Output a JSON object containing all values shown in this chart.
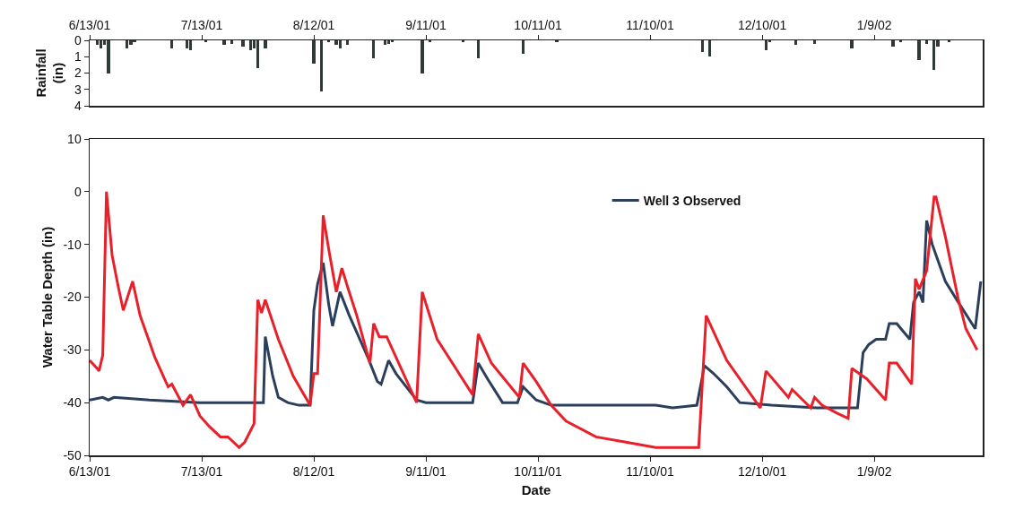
{
  "chart_data": [
    {
      "type": "bar",
      "ylabel": "Rainfall (in)",
      "color": "#2f3a35",
      "x": [
        "2001-06-15",
        "2001-06-16",
        "2001-06-17",
        "2001-06-18",
        "2001-06-23",
        "2001-06-24",
        "2001-06-25",
        "2001-07-05",
        "2001-07-09",
        "2001-07-10",
        "2001-07-14",
        "2001-07-19",
        "2001-07-21",
        "2001-07-24",
        "2001-07-26",
        "2001-07-27",
        "2001-07-28",
        "2001-07-30",
        "2001-08-12",
        "2001-08-14",
        "2001-08-16",
        "2001-08-18",
        "2001-08-19",
        "2001-08-21",
        "2001-08-28",
        "2001-08-31",
        "2001-09-01",
        "2001-09-02",
        "2001-09-10",
        "2001-09-12",
        "2001-09-21",
        "2001-09-25",
        "2001-10-07",
        "2001-10-16",
        "2001-11-24",
        "2001-11-26",
        "2001-12-11",
        "2001-12-12",
        "2001-12-19",
        "2001-12-24",
        "2002-01-03",
        "2002-01-14",
        "2002-01-16",
        "2002-01-21",
        "2002-01-23",
        "2002-01-25",
        "2002-01-26",
        "2002-01-29"
      ],
      "values": [
        0.3,
        0.5,
        0.3,
        2.0,
        0.5,
        0.3,
        0.1,
        0.5,
        0.5,
        0.6,
        0.1,
        0.3,
        0.2,
        0.4,
        0.6,
        0.5,
        1.7,
        0.5,
        1.4,
        3.1,
        0.1,
        0.3,
        0.5,
        0.3,
        1.1,
        0.3,
        0.2,
        0.1,
        2.0,
        0.1,
        0.1,
        1.1,
        0.8,
        0.1,
        0.7,
        1.0,
        0.6,
        0.1,
        0.3,
        0.2,
        0.5,
        0.4,
        0.1,
        1.2,
        0.2,
        1.8,
        0.4,
        0.1
      ],
      "xlim": [
        "2001-06-13",
        "2002-02-07"
      ],
      "xticks": [
        {
          "value": "2001-06-13",
          "label": "6/13/01"
        },
        {
          "value": "2001-07-13",
          "label": "7/13/01"
        },
        {
          "value": "2001-08-12",
          "label": "8/12/01"
        },
        {
          "value": "2001-09-11",
          "label": "9/11/01"
        },
        {
          "value": "2001-10-11",
          "label": "10/11/01"
        },
        {
          "value": "2001-11-10",
          "label": "11/10/01"
        },
        {
          "value": "2001-12-10",
          "label": "12/10/01"
        },
        {
          "value": "2002-01-09",
          "label": "1/9/02"
        }
      ],
      "ylim": [
        4,
        0
      ],
      "yticks": [
        0,
        1,
        2,
        3,
        4
      ],
      "grid": false,
      "legend": false
    },
    {
      "type": "line",
      "xlabel": "Date",
      "ylabel": "Water Table Depth (in)",
      "legend": "top right",
      "grid": false,
      "marker": "none",
      "line_style": "solid",
      "xlim": [
        "2001-06-13",
        "2002-02-07"
      ],
      "xticks": [
        {
          "value": "2001-06-13",
          "label": "6/13/01"
        },
        {
          "value": "2001-07-13",
          "label": "7/13/01"
        },
        {
          "value": "2001-08-12",
          "label": "8/12/01"
        },
        {
          "value": "2001-09-11",
          "label": "9/11/01"
        },
        {
          "value": "2001-10-11",
          "label": "10/11/01"
        },
        {
          "value": "2001-11-10",
          "label": "11/10/01"
        },
        {
          "value": "2001-12-10",
          "label": "12/10/01"
        },
        {
          "value": "2002-01-09",
          "label": "1/9/02"
        }
      ],
      "ylim": [
        -50,
        10
      ],
      "yticks": [
        -50,
        -40,
        -30,
        -20,
        -10,
        0,
        10
      ],
      "series": [
        {
          "name": "Well 3 Observed",
          "color": "#2b3f5c",
          "x": [
            "2001-06-13",
            "2001-06-16T12:00",
            "2001-06-18",
            "2001-06-19T12:00",
            "2001-06-29",
            "2001-07-12T12:00",
            "2001-07-28T12:00",
            "2001-07-29T12:00",
            "2001-07-30",
            "2001-08-01",
            "2001-08-02T12:00",
            "2001-08-05",
            "2001-08-08",
            "2001-08-11",
            "2001-08-12",
            "2001-08-13",
            "2001-08-14T12:00",
            "2001-08-16",
            "2001-08-17",
            "2001-08-19",
            "2001-08-21T12:00",
            "2001-08-26T12:00",
            "2001-08-29",
            "2001-08-30",
            "2001-09-01",
            "2001-09-03",
            "2001-09-08T12:00",
            "2001-09-11",
            "2001-09-23T12:00",
            "2001-09-25",
            "2001-09-27T12:00",
            "2001-10-01T12:00",
            "2001-10-05T12:00",
            "2001-10-07",
            "2001-10-10T12:00",
            "2001-10-14T12:00",
            "2001-10-26T12:00",
            "2001-11-11T12:00",
            "2001-11-16",
            "2001-11-22T12:00",
            "2001-11-24",
            "2001-11-24T12:00",
            "2001-11-27",
            "2001-11-30T12:00",
            "2001-12-04",
            "2001-12-12T12:00",
            "2001-12-24T12:00",
            "2002-01-04T12:00",
            "2002-01-06",
            "2002-01-07T12:00",
            "2002-01-09T12:00",
            "2002-01-12",
            "2002-01-13",
            "2002-01-15",
            "2002-01-18T12:00",
            "2002-01-19T12:00",
            "2002-01-21",
            "2002-01-22",
            "2002-01-23",
            "2002-01-24T12:00",
            "2002-01-28",
            "2002-01-31T12:00",
            "2002-02-05",
            "2002-02-06T12:00"
          ],
          "values": [
            -39.5,
            -39,
            -39.5,
            -39,
            -39.5,
            -40,
            -40,
            -40,
            -27.5,
            -35,
            -39,
            -40,
            -40.5,
            -40.5,
            -22.5,
            -17.5,
            -13.5,
            -21.5,
            -25.5,
            -19,
            -23.5,
            -31.5,
            -36,
            -36.5,
            -32,
            -34.5,
            -39.5,
            -40,
            -40,
            -32.5,
            -35.5,
            -40,
            -40,
            -37,
            -39.5,
            -40.5,
            -40.5,
            -40.5,
            -41,
            -40.5,
            -35,
            -33,
            -34.5,
            -37,
            -40,
            -40.5,
            -41,
            -41,
            -30.5,
            -29,
            -28,
            -28,
            -25,
            -25,
            -28,
            -21,
            -19,
            -21,
            -5.5,
            -10,
            -17,
            -21,
            -26,
            -17
          ]
        },
        {
          "color": "#e8202a",
          "x": [
            "2001-06-13",
            "2001-06-15",
            "2001-06-15T12:00",
            "2001-06-16T12:00",
            "2001-06-17T12:00",
            "2001-06-19",
            "2001-06-20T12:00",
            "2001-06-22",
            "2001-06-24T12:00",
            "2001-06-26T12:00",
            "2001-06-30T12:00",
            "2001-07-04",
            "2001-07-05",
            "2001-07-08",
            "2001-07-10",
            "2001-07-12T12:00",
            "2001-07-15",
            "2001-07-18",
            "2001-07-20",
            "2001-07-23",
            "2001-07-24T12:00",
            "2001-07-27",
            "2001-07-28",
            "2001-07-29",
            "2001-07-30",
            "2001-08-02T12:00",
            "2001-08-06T12:00",
            "2001-08-11",
            "2001-08-12",
            "2001-08-13",
            "2001-08-14T12:00",
            "2001-08-16",
            "2001-08-18",
            "2001-08-19T12:00",
            "2001-08-21",
            "2001-08-23T12:00",
            "2001-08-27",
            "2001-08-28",
            "2001-08-29T12:00",
            "2001-08-31T12:00",
            "2001-09-08T12:00",
            "2001-09-10",
            "2001-09-14",
            "2001-09-23T12:00",
            "2001-09-25",
            "2001-09-28T12:00",
            "2001-10-06",
            "2001-10-07",
            "2001-10-10T12:00",
            "2001-10-14T12:00",
            "2001-10-18T12:00",
            "2001-10-26T12:00",
            "2001-11-03T12:00",
            "2001-11-11T12:00",
            "2001-11-23",
            "2001-11-25",
            "2001-11-30T12:00",
            "2001-12-09T12:00",
            "2001-12-11",
            "2001-12-17",
            "2001-12-18",
            "2001-12-23",
            "2001-12-24",
            "2001-12-26",
            "2001-12-30",
            "2002-01-02",
            "2002-01-03",
            "2002-01-07",
            "2002-01-12",
            "2002-01-13",
            "2002-01-15",
            "2002-01-19",
            "2002-01-20",
            "2002-01-21",
            "2002-01-23",
            "2002-01-25",
            "2002-01-25T12:00",
            "2002-01-28",
            "2002-01-31T12:00",
            "2002-02-02T12:00",
            "2002-02-05T12:00"
          ],
          "values": [
            -32,
            -33.5,
            -34,
            -31,
            0,
            -12,
            -17.5,
            -22.5,
            -17,
            -23.5,
            -31.5,
            -37,
            -36.5,
            -40.5,
            -38.5,
            -42.5,
            -44.5,
            -46.5,
            -46.5,
            -48.5,
            -47.5,
            -44,
            -20.5,
            -23,
            -20.5,
            -28,
            -35,
            -40.5,
            -34.5,
            -34.5,
            -4.5,
            -11,
            -19,
            -14.5,
            -18,
            -23.5,
            -32.5,
            -25,
            -27.5,
            -27.5,
            -40,
            -19,
            -28,
            -38.5,
            -27,
            -32.5,
            -39,
            -32.5,
            -36,
            -40.5,
            -43.5,
            -46.5,
            -47.5,
            -48.5,
            -48.5,
            -23.5,
            -32,
            -41,
            -34,
            -39,
            -37.5,
            -41,
            -39,
            -40.5,
            -42,
            -43,
            -33.5,
            -35.5,
            -39.5,
            -32.5,
            -32.5,
            -36.5,
            -16.5,
            -18.5,
            -15,
            -1,
            -1,
            -8.5,
            -20.5,
            -26,
            -30
          ]
        }
      ]
    }
  ]
}
